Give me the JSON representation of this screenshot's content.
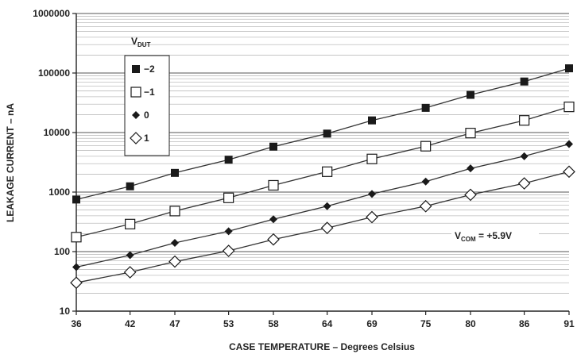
{
  "chart_data": {
    "type": "line",
    "xlabel": "CASE TEMPERATURE – Degrees Celsius",
    "ylabel": "LEAKAGE CURRENT – nA",
    "x_ticks": [
      "36",
      "42",
      "47",
      "53",
      "58",
      "64",
      "69",
      "75",
      "80",
      "86",
      "91"
    ],
    "y_ticks": [
      "10",
      "100",
      "1000",
      "10000",
      "100000",
      "1000000"
    ],
    "xlim": [
      36,
      91
    ],
    "ylim": [
      10,
      1000000
    ],
    "y_scale": "log",
    "grid": true,
    "legend": {
      "placement": "top-left",
      "title_main": "V",
      "title_sub": "DUT"
    },
    "annotation": {
      "main": "V",
      "sub": "COM",
      "rest": " = +5.9V"
    },
    "x": [
      36,
      42,
      47,
      53,
      58,
      64,
      69,
      75,
      80,
      86,
      91
    ],
    "series": [
      {
        "name": "−2",
        "marker": "filled-square",
        "values": [
          750,
          1250,
          2100,
          3500,
          5800,
          9600,
          16000,
          26000,
          43000,
          72000,
          120000
        ]
      },
      {
        "name": "−1",
        "marker": "open-square",
        "values": [
          175,
          290,
          480,
          800,
          1300,
          2200,
          3600,
          5900,
          9800,
          16000,
          27000
        ]
      },
      {
        "name": "0",
        "marker": "filled-diamond",
        "values": [
          55,
          87,
          140,
          220,
          350,
          580,
          930,
          1500,
          2500,
          4000,
          6400
        ]
      },
      {
        "name": "1",
        "marker": "open-diamond",
        "values": [
          30,
          45,
          68,
          103,
          160,
          250,
          380,
          580,
          900,
          1400,
          2200
        ]
      }
    ],
    "colors": {
      "line": "#333333",
      "grid": "#bdbdbd",
      "marker": "#1a1a1a"
    }
  }
}
